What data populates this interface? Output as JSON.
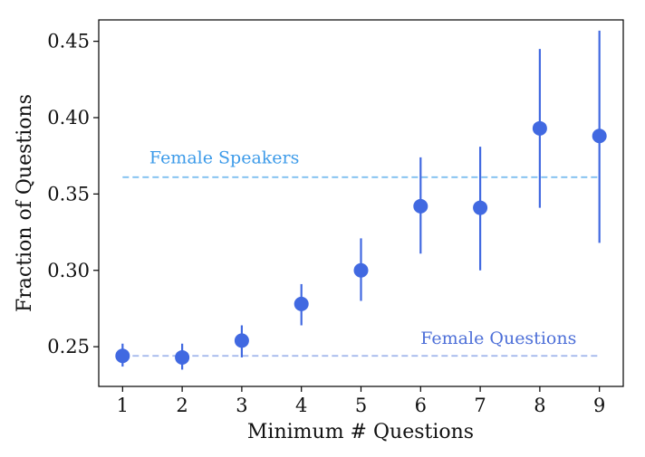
{
  "chart_data": {
    "type": "scatter",
    "title": "",
    "xlabel": "Minimum # Questions",
    "ylabel": "Fraction of Questions",
    "xlim": [
      0.6,
      9.4
    ],
    "ylim": [
      0.224,
      0.464
    ],
    "xticks": [
      1,
      2,
      3,
      4,
      5,
      6,
      7,
      8,
      9
    ],
    "yticks": [
      0.25,
      0.3,
      0.35,
      0.4,
      0.45
    ],
    "ytick_labels": [
      "0.25",
      "0.30",
      "0.35",
      "0.40",
      "0.45"
    ],
    "grid": false,
    "point_color": "#4169e1",
    "points": [
      {
        "x": 1,
        "y": 0.244,
        "lo": 0.237,
        "hi": 0.252
      },
      {
        "x": 2,
        "y": 0.243,
        "lo": 0.235,
        "hi": 0.252
      },
      {
        "x": 3,
        "y": 0.254,
        "lo": 0.243,
        "hi": 0.264
      },
      {
        "x": 4,
        "y": 0.278,
        "lo": 0.264,
        "hi": 0.291
      },
      {
        "x": 5,
        "y": 0.3,
        "lo": 0.28,
        "hi": 0.321
      },
      {
        "x": 6,
        "y": 0.342,
        "lo": 0.311,
        "hi": 0.374
      },
      {
        "x": 7,
        "y": 0.341,
        "lo": 0.3,
        "hi": 0.381
      },
      {
        "x": 8,
        "y": 0.393,
        "lo": 0.341,
        "hi": 0.445
      },
      {
        "x": 9,
        "y": 0.388,
        "lo": 0.318,
        "hi": 0.457
      }
    ],
    "reference_lines": [
      {
        "label": "Female Speakers",
        "y": 0.361,
        "x_start": 1,
        "x_end": 9,
        "color": "#7fbff0",
        "text_color": "#3d9be9",
        "label_x": 1.45,
        "label_y": 0.37
      },
      {
        "label": "Female Questions",
        "y": 0.244,
        "x_start": 1,
        "x_end": 9,
        "color": "#9fb4ec",
        "text_color": "#4d6fd8",
        "label_x": 6.0,
        "label_y": 0.252
      }
    ]
  }
}
